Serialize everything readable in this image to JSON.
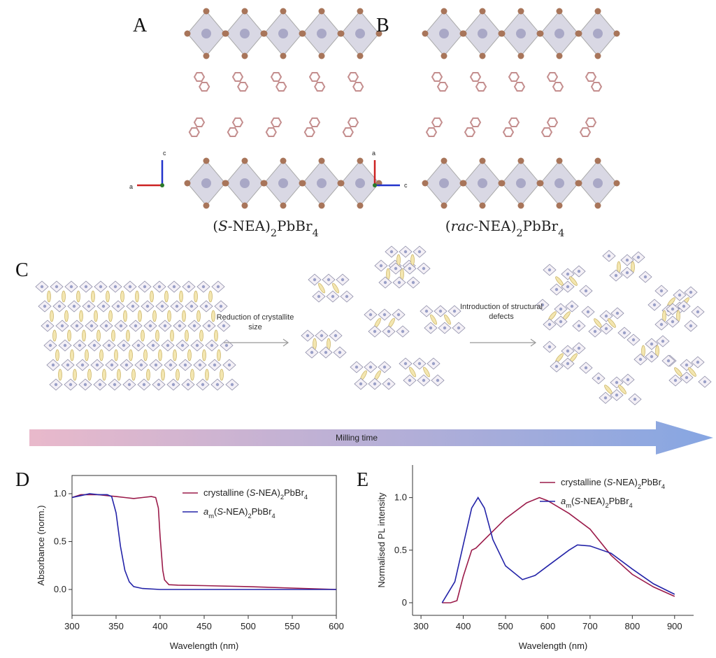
{
  "panel_a": {
    "label": "A",
    "caption": "(S-NEA)2PbBr4",
    "axis_vertical": "c",
    "axis_horizontal": "a"
  },
  "panel_b": {
    "label": "B",
    "caption": "(rac-NEA)2PbBr4",
    "axis_vertical": "a",
    "axis_horizontal": "c"
  },
  "panel_c": {
    "label": "C",
    "step_1": "Reduction of crystallite size",
    "step_2": "Introduction of structural defects",
    "arrow_label": "Milling time"
  },
  "chart_data": [
    {
      "type": "line",
      "panel_label": "D",
      "x_label": "Wavelength (nm)",
      "y_label": "Absorbance (norm.)",
      "xlim": [
        300,
        600
      ],
      "xticks": [
        300,
        350,
        400,
        450,
        500,
        550,
        600
      ],
      "ylim": [
        -0.27,
        1.19
      ],
      "yticks": [
        {
          "value": 0,
          "label": "0.0"
        },
        0.5,
        {
          "value": 1,
          "label": "1.0"
        }
      ],
      "box": true,
      "legend": "upper right",
      "series": [
        {
          "name": "crystalline (S-NEA)2PbBr4",
          "color": "#9b1b4a",
          "x": [
            300,
            310,
            320,
            330,
            340,
            350,
            360,
            370,
            380,
            390,
            395,
            398,
            400,
            403,
            405,
            410,
            420,
            450,
            500,
            550,
            600
          ],
          "values": [
            0.96,
            0.99,
            0.99,
            0.99,
            0.98,
            0.97,
            0.96,
            0.95,
            0.96,
            0.97,
            0.96,
            0.85,
            0.55,
            0.2,
            0.1,
            0.05,
            0.045,
            0.04,
            0.03,
            0.015,
            0.0
          ]
        },
        {
          "name": "am(S-NEA)2PbBr4",
          "color": "#2323a8",
          "x": [
            300,
            310,
            320,
            330,
            340,
            345,
            350,
            355,
            360,
            365,
            370,
            380,
            400,
            450,
            500,
            600
          ],
          "values": [
            0.96,
            0.98,
            1.0,
            0.99,
            0.99,
            0.97,
            0.8,
            0.45,
            0.2,
            0.08,
            0.03,
            0.01,
            0.0,
            0.0,
            0.0,
            0.0
          ]
        }
      ]
    },
    {
      "type": "line",
      "panel_label": "E",
      "x_label": "Wavelength (nm)",
      "y_label": "Normalised PL intensity",
      "xlim": [
        280,
        945
      ],
      "xticks": [
        300,
        400,
        500,
        600,
        700,
        800,
        900
      ],
      "ylim": [
        -0.12,
        1.31
      ],
      "yticks": [
        0,
        0.5,
        {
          "value": 1,
          "label": "1.0"
        }
      ],
      "box": false,
      "legend": "upper right",
      "series": [
        {
          "name": "crystalline (S-NEA)2PbBr4",
          "color": "#9b1b4a",
          "x": [
            350,
            370,
            385,
            400,
            420,
            430,
            450,
            500,
            550,
            580,
            600,
            650,
            700,
            750,
            800,
            850,
            900
          ],
          "values": [
            0,
            0.0,
            0.02,
            0.25,
            0.5,
            0.52,
            0.6,
            0.8,
            0.95,
            1.0,
            0.97,
            0.85,
            0.7,
            0.45,
            0.27,
            0.15,
            0.06
          ]
        },
        {
          "name": "am(S-NEA)2PbBr4",
          "color": "#2323a8",
          "x": [
            350,
            380,
            400,
            420,
            435,
            450,
            470,
            500,
            540,
            570,
            600,
            650,
            670,
            700,
            750,
            800,
            850,
            900
          ],
          "values": [
            0,
            0.2,
            0.55,
            0.9,
            1.0,
            0.9,
            0.6,
            0.35,
            0.22,
            0.26,
            0.35,
            0.5,
            0.55,
            0.54,
            0.47,
            0.32,
            0.18,
            0.08
          ]
        }
      ]
    }
  ]
}
